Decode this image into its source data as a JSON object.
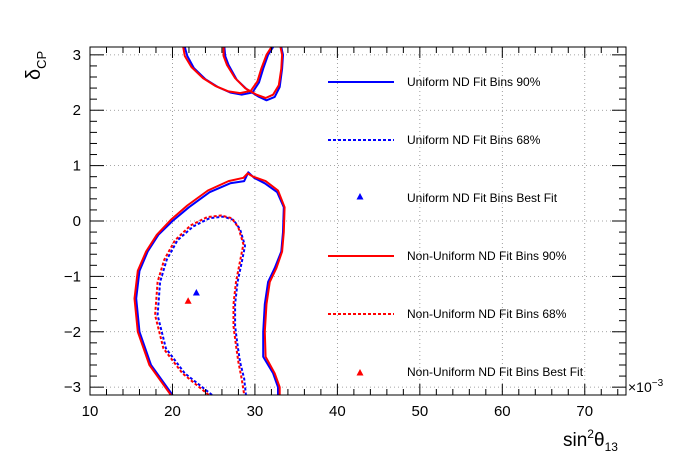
{
  "chart_data": {
    "type": "line",
    "xlabel": {
      "main": "sin",
      "sup": "2",
      "greek": "θ",
      "sub": "13"
    },
    "ylabel": {
      "main": "δ",
      "sub": "CP"
    },
    "x_exponent": "×10",
    "x_exponent_power": "−3",
    "xlim": [
      10,
      75
    ],
    "ylim": [
      -3.1416,
      3.1416
    ],
    "x_ticks": [
      10,
      20,
      30,
      40,
      50,
      60,
      70
    ],
    "y_ticks": [
      -3,
      -2,
      -1,
      0,
      1,
      2,
      3
    ],
    "y_tick_labels": [
      "−3",
      "−2",
      "−1",
      "0",
      "1",
      "2",
      "3"
    ],
    "grid": true,
    "legend_position": "right",
    "colors": {
      "uniform": "#0000ff",
      "non_uniform": "#ff0000",
      "axes": "#000000",
      "grid": "#888888"
    },
    "legend": [
      {
        "label": "Uniform ND Fit Bins 90%",
        "kind": "line",
        "style": "solid",
        "color": "#0000ff"
      },
      {
        "label": "Uniform ND Fit Bins 68%",
        "kind": "line",
        "style": "dashed",
        "color": "#0000ff"
      },
      {
        "label": "Uniform ND Fit Bins Best Fit",
        "kind": "marker",
        "color": "#0000ff"
      },
      {
        "label": "Non-Uniform ND Fit Bins 90%",
        "kind": "line",
        "style": "solid",
        "color": "#ff0000"
      },
      {
        "label": "Non-Uniform ND Fit Bins 68%",
        "kind": "line",
        "style": "dashed",
        "color": "#ff0000"
      },
      {
        "label": "Non-Uniform ND Fit Bins Best Fit",
        "kind": "marker",
        "color": "#ff0000"
      }
    ],
    "series": [
      {
        "name": "Uniform ND Fit Bins 90%",
        "style": "solid",
        "color": "#0000ff",
        "segments": [
          [
            [
              26.3,
              3.14
            ],
            [
              26.4,
              2.98
            ],
            [
              26.8,
              2.82
            ],
            [
              27.8,
              2.55
            ],
            [
              29.0,
              2.38
            ],
            [
              30.5,
              2.24
            ],
            [
              31.4,
              2.18
            ],
            [
              32.4,
              2.24
            ],
            [
              33.0,
              2.42
            ],
            [
              33.3,
              2.75
            ],
            [
              33.4,
              3.0
            ],
            [
              33.2,
              3.14
            ]
          ],
          [
            [
              21.5,
              3.14
            ],
            [
              21.8,
              2.98
            ],
            [
              22.6,
              2.76
            ],
            [
              24.0,
              2.56
            ],
            [
              25.5,
              2.42
            ],
            [
              27.0,
              2.32
            ],
            [
              28.4,
              2.28
            ],
            [
              29.7,
              2.32
            ],
            [
              30.5,
              2.5
            ],
            [
              31.0,
              2.75
            ],
            [
              31.6,
              3.0
            ],
            [
              32.2,
              3.14
            ]
          ],
          [
            [
              20.0,
              -3.14
            ],
            [
              17.4,
              -2.6
            ],
            [
              16.0,
              -2.0
            ],
            [
              15.6,
              -1.4
            ],
            [
              16.0,
              -0.9
            ],
            [
              17.0,
              -0.55
            ],
            [
              18.3,
              -0.25
            ],
            [
              20.0,
              0.0
            ],
            [
              22.0,
              0.25
            ],
            [
              24.5,
              0.52
            ],
            [
              27.0,
              0.68
            ],
            [
              28.7,
              0.72
            ],
            [
              29.2,
              0.88
            ],
            [
              29.9,
              0.78
            ],
            [
              31.2,
              0.68
            ],
            [
              32.7,
              0.52
            ],
            [
              33.5,
              0.25
            ],
            [
              33.4,
              -0.2
            ],
            [
              33.2,
              -0.55
            ],
            [
              32.4,
              -0.85
            ],
            [
              31.6,
              -1.1
            ],
            [
              31.2,
              -1.5
            ],
            [
              31.0,
              -2.0
            ],
            [
              31.0,
              -2.45
            ],
            [
              32.2,
              -2.75
            ],
            [
              32.8,
              -3.0
            ],
            [
              32.8,
              -3.14
            ]
          ]
        ]
      },
      {
        "name": "Non-Uniform ND Fit Bins 90%",
        "style": "solid",
        "color": "#ff0000",
        "segments": [
          [
            [
              26.2,
              3.14
            ],
            [
              26.2,
              2.98
            ],
            [
              26.6,
              2.82
            ],
            [
              27.6,
              2.58
            ],
            [
              28.8,
              2.4
            ],
            [
              30.2,
              2.28
            ],
            [
              31.3,
              2.22
            ],
            [
              32.2,
              2.28
            ],
            [
              32.9,
              2.45
            ],
            [
              33.2,
              2.75
            ],
            [
              33.3,
              3.0
            ],
            [
              33.1,
              3.14
            ]
          ],
          [
            [
              21.3,
              3.14
            ],
            [
              21.5,
              2.98
            ],
            [
              22.3,
              2.78
            ],
            [
              23.7,
              2.58
            ],
            [
              25.2,
              2.44
            ],
            [
              26.8,
              2.34
            ],
            [
              28.2,
              2.31
            ],
            [
              29.5,
              2.35
            ],
            [
              30.3,
              2.52
            ],
            [
              30.8,
              2.76
            ],
            [
              31.4,
              3.0
            ],
            [
              32.0,
              3.14
            ]
          ],
          [
            [
              19.8,
              -3.14
            ],
            [
              17.2,
              -2.6
            ],
            [
              15.8,
              -2.0
            ],
            [
              15.4,
              -1.4
            ],
            [
              15.8,
              -0.9
            ],
            [
              16.8,
              -0.55
            ],
            [
              18.1,
              -0.25
            ],
            [
              19.8,
              0.02
            ],
            [
              21.8,
              0.28
            ],
            [
              24.3,
              0.55
            ],
            [
              26.8,
              0.72
            ],
            [
              28.6,
              0.78
            ],
            [
              29.1,
              0.86
            ],
            [
              29.8,
              0.8
            ],
            [
              31.3,
              0.72
            ],
            [
              32.8,
              0.55
            ],
            [
              33.6,
              0.25
            ],
            [
              33.5,
              -0.2
            ],
            [
              33.3,
              -0.55
            ],
            [
              32.6,
              -0.85
            ],
            [
              31.8,
              -1.1
            ],
            [
              31.4,
              -1.5
            ],
            [
              31.2,
              -2.0
            ],
            [
              31.3,
              -2.45
            ],
            [
              32.4,
              -2.75
            ],
            [
              33.0,
              -3.0
            ],
            [
              33.0,
              -3.14
            ]
          ]
        ]
      },
      {
        "name": "Uniform ND Fit Bins 68%",
        "style": "dashed",
        "color": "#0000ff",
        "segments": [
          [
            [
              24.8,
              -3.14
            ],
            [
              21.5,
              -2.75
            ],
            [
              19.2,
              -2.3
            ],
            [
              18.2,
              -1.7
            ],
            [
              18.5,
              -1.1
            ],
            [
              19.3,
              -0.7
            ],
            [
              20.6,
              -0.35
            ],
            [
              22.5,
              -0.1
            ],
            [
              24.5,
              0.05
            ],
            [
              26.2,
              0.08
            ],
            [
              27.4,
              0.02
            ],
            [
              28.2,
              -0.15
            ],
            [
              28.8,
              -0.45
            ],
            [
              28.4,
              -0.75
            ],
            [
              27.9,
              -1.1
            ],
            [
              27.6,
              -1.5
            ],
            [
              27.6,
              -1.9
            ],
            [
              27.9,
              -2.25
            ],
            [
              28.2,
              -2.55
            ],
            [
              28.7,
              -2.85
            ],
            [
              28.9,
              -3.14
            ]
          ]
        ]
      },
      {
        "name": "Non-Uniform ND Fit Bins 68%",
        "style": "dashed",
        "color": "#ff0000",
        "segments": [
          [
            [
              24.4,
              -3.14
            ],
            [
              21.2,
              -2.75
            ],
            [
              18.9,
              -2.3
            ],
            [
              17.9,
              -1.7
            ],
            [
              18.2,
              -1.1
            ],
            [
              19.0,
              -0.7
            ],
            [
              20.3,
              -0.35
            ],
            [
              22.2,
              -0.08
            ],
            [
              24.2,
              0.07
            ],
            [
              25.9,
              0.1
            ],
            [
              27.2,
              0.05
            ],
            [
              28.0,
              -0.12
            ],
            [
              28.6,
              -0.42
            ],
            [
              28.2,
              -0.72
            ],
            [
              27.7,
              -1.1
            ],
            [
              27.4,
              -1.5
            ],
            [
              27.4,
              -1.9
            ],
            [
              27.7,
              -2.25
            ],
            [
              28.0,
              -2.55
            ],
            [
              28.4,
              -2.85
            ],
            [
              28.7,
              -3.14
            ]
          ]
        ]
      }
    ],
    "best_fit": [
      {
        "name": "Uniform ND Fit Bins Best Fit",
        "x": 22.9,
        "y": -1.3,
        "color": "#0000ff"
      },
      {
        "name": "Non-Uniform ND Fit Bins Best Fit",
        "x": 21.9,
        "y": -1.45,
        "color": "#ff0000"
      }
    ]
  }
}
